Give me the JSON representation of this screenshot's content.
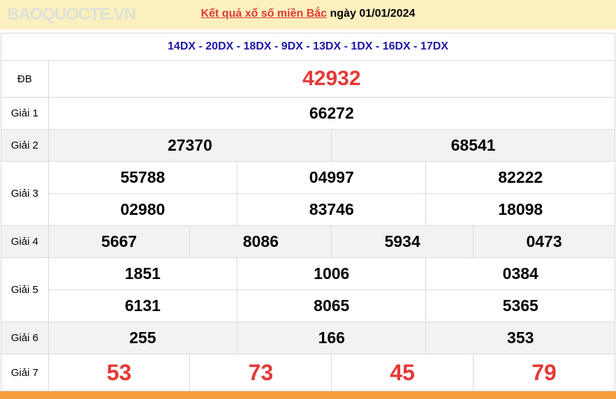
{
  "header": {
    "link_text": "Kết quả xổ số miền Bắc",
    "date_text": "ngày 01/01/2024"
  },
  "codes": "14DX - 20DX - 18DX - 9DX - 13DX - 1DX - 16DX - 17DX",
  "prizes": {
    "db": {
      "label": "ĐB",
      "numbers": [
        "42932"
      ]
    },
    "g1": {
      "label": "Giải 1",
      "numbers": [
        "66272"
      ]
    },
    "g2": {
      "label": "Giải 2",
      "numbers": [
        "27370",
        "68541"
      ]
    },
    "g3": {
      "label": "Giải 3",
      "numbers": [
        "55788",
        "04997",
        "82222",
        "02980",
        "83746",
        "18098"
      ]
    },
    "g4": {
      "label": "Giải 4",
      "numbers": [
        "5667",
        "8086",
        "5934",
        "0473"
      ]
    },
    "g5": {
      "label": "Giải 5",
      "numbers": [
        "1851",
        "1006",
        "0384",
        "6131",
        "8065",
        "5365"
      ]
    },
    "g6": {
      "label": "Giải 6",
      "numbers": [
        "255",
        "166",
        "353"
      ]
    },
    "g7": {
      "label": "Giải 7",
      "numbers": [
        "53",
        "73",
        "45",
        "79"
      ]
    }
  },
  "watermark": "BAOQUOCTE.VN",
  "colors": {
    "header_bg": "#fdf0bf",
    "accent_red": "#e53935",
    "codes_blue": "#1d18a8",
    "footer_orange": "#f49d3e"
  }
}
